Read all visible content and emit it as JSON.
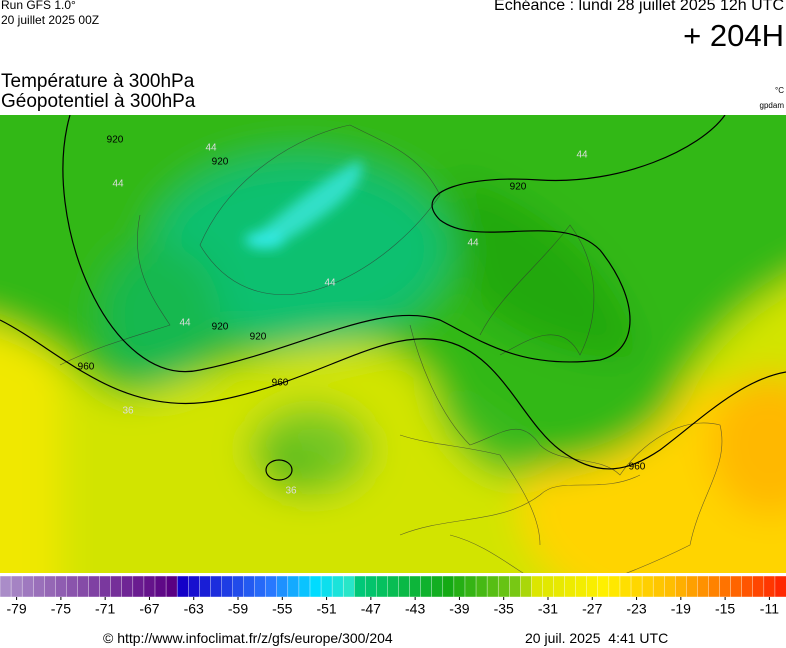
{
  "header": {
    "run": "Run GFS 1.0°",
    "run_date": "20 juillet 2025 00Z",
    "forecast": "Echéance : lundi 28 juillet 2025 12h UTC",
    "lead": "+ 204H"
  },
  "titles": [
    "Température à 300hPa",
    "Géopotentiel à 300hPa"
  ],
  "units": [
    "°C",
    "gpdam"
  ],
  "map": {
    "contour_labels": [
      "920",
      "920",
      "920",
      "920",
      "920",
      "960",
      "960",
      "960",
      "44",
      "44",
      "44",
      "44",
      "44",
      "44",
      "36",
      "36"
    ]
  },
  "legend": {
    "ticks": [
      -79,
      -75,
      -71,
      -67,
      -63,
      -59,
      -55,
      -51,
      -47,
      -43,
      -39,
      -35,
      -31,
      -27,
      -23,
      -19,
      -15,
      -11
    ]
  },
  "footer": {
    "url": "© http://www.infoclimat.fr/z/gfs/europe/300/204",
    "timestamp": "20 juil. 2025  4:41 UTC"
  }
}
